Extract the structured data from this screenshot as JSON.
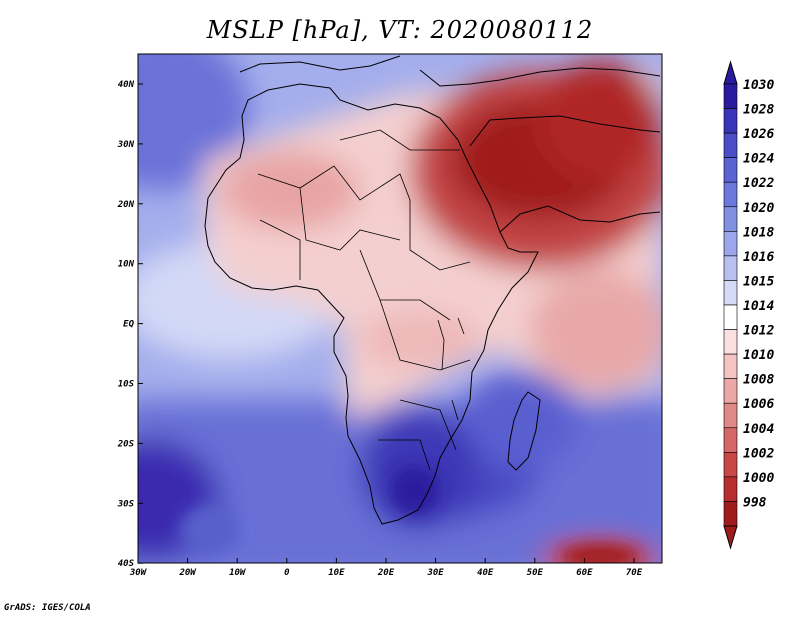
{
  "title": "MSLP [hPa], VT: 2020080112",
  "footer": "GrADS: IGES/COLA",
  "x_axis_labels": [
    "30W",
    "20W",
    "10W",
    "0",
    "10E",
    "20E",
    "30E",
    "40E",
    "50E",
    "60E",
    "70E"
  ],
  "y_axis_labels": [
    "40N",
    "30N",
    "20N",
    "10N",
    "EQ",
    "10S",
    "20S",
    "30S",
    "40S"
  ],
  "colorbar": {
    "levels": [
      "1030",
      "1028",
      "1026",
      "1024",
      "1022",
      "1020",
      "1018",
      "1016",
      "1015",
      "1014",
      "1012",
      "1010",
      "1008",
      "1006",
      "1004",
      "1002",
      "1000",
      "998"
    ],
    "colors": [
      "#2a1a9e",
      "#3a34b8",
      "#4a4cc8",
      "#5a62d4",
      "#6c78dc",
      "#8290e2",
      "#9ca6ea",
      "#b8c0f0",
      "#d6daf6",
      "#ffffff",
      "#fae0e0",
      "#f4c4c4",
      "#eba6a6",
      "#e08888",
      "#d46868",
      "#c84848",
      "#b82e2e",
      "#a01c1c"
    ]
  },
  "colors": {
    "ocean_south": "#6a74d8",
    "ocean_deep": "#2a1a9e",
    "land_neutral": "#f6d2d2",
    "low_pressure": "#a01c1c",
    "coastline": "#000000"
  }
}
